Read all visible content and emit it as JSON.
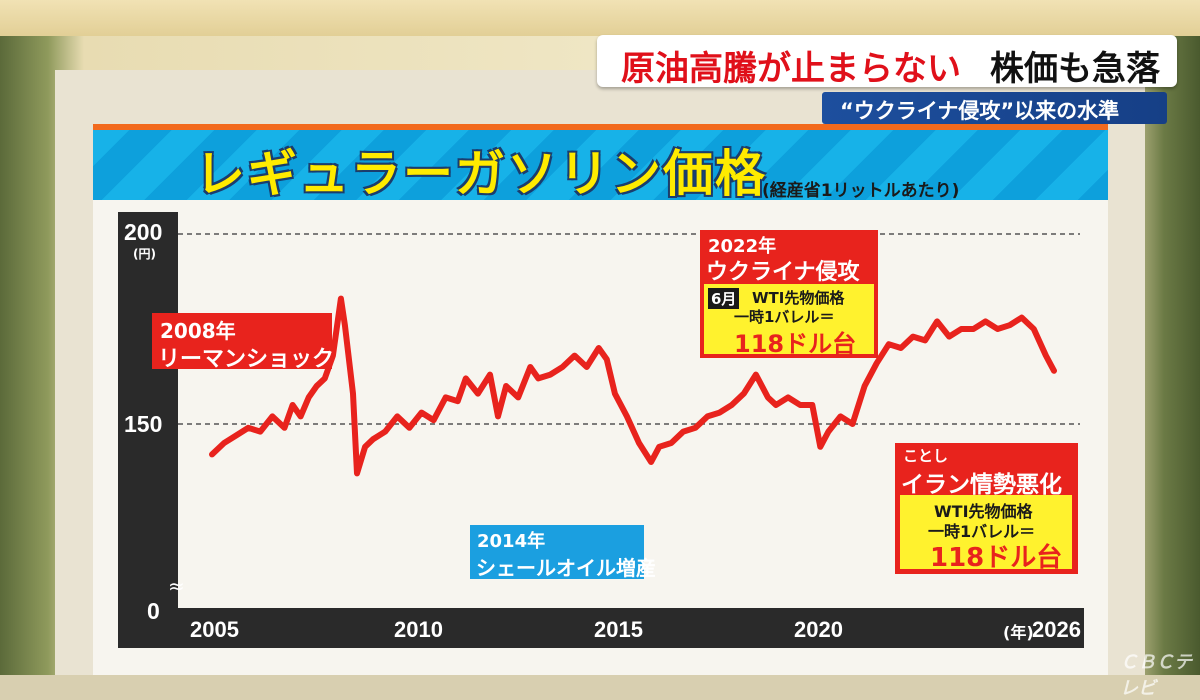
{
  "headline": {
    "part1": "原油高騰が止まらない",
    "part2": "株価も急落"
  },
  "subheadline": "“ウクライナ侵攻”以来の水準",
  "watermark": "ＣＢＣテレビ",
  "colors": {
    "line": "#e8231d",
    "title": "#ffeb00",
    "band": "#17b2e8",
    "axis": "#2a2a2a",
    "callout_yellow": "#fff22e"
  },
  "chart_data": {
    "type": "line",
    "title": "レギュラーガソリン価格",
    "subtitle": "(経産省1リットルあたり)",
    "ylabel_unit": "(円)",
    "xlabel_unit": "(年)",
    "y_ticks": [
      "200",
      "150",
      "0"
    ],
    "x_ticks": [
      "2005",
      "2010",
      "2015",
      "2020",
      "2026"
    ],
    "ylim": [
      130,
      200
    ],
    "axis_break": true,
    "grid": "dashed",
    "series": [
      {
        "x": [
          2005.0,
          2005.3,
          2005.6,
          2005.9,
          2006.2,
          2006.5,
          2006.8,
          2007.0,
          2007.2,
          2007.4,
          2007.6,
          2007.8,
          2008.0,
          2008.2,
          2008.3,
          2008.5,
          2008.6,
          2008.8,
          2009.0,
          2009.3,
          2009.6,
          2009.9,
          2010.2,
          2010.5,
          2010.8,
          2011.1,
          2011.3,
          2011.6,
          2011.9,
          2012.1,
          2012.3,
          2012.6,
          2012.9,
          2013.1,
          2013.4,
          2013.7,
          2014.0,
          2014.3,
          2014.6,
          2014.8,
          2015.0,
          2015.3,
          2015.6,
          2015.9,
          2016.1,
          2016.4,
          2016.7,
          2017.0,
          2017.3,
          2017.6,
          2017.9,
          2018.2,
          2018.5,
          2018.8,
          2019.0,
          2019.3,
          2019.6,
          2019.9,
          2020.1,
          2020.3,
          2020.6,
          2020.9,
          2021.2,
          2021.5,
          2021.8,
          2022.1,
          2022.4,
          2022.7,
          2023.0,
          2023.3,
          2023.6,
          2023.9,
          2024.2,
          2024.5,
          2024.8,
          2025.1,
          2025.4,
          2025.7,
          2025.9
        ],
        "values": [
          142,
          145,
          147,
          149,
          148,
          152,
          149,
          155,
          152,
          157,
          160,
          162,
          168,
          183,
          176,
          158,
          137,
          144,
          146,
          148,
          152,
          149,
          153,
          151,
          157,
          156,
          162,
          158,
          163,
          152,
          160,
          157,
          165,
          162,
          163,
          165,
          168,
          165,
          170,
          167,
          158,
          152,
          145,
          140,
          144,
          145,
          148,
          149,
          152,
          153,
          155,
          158,
          163,
          157,
          155,
          157,
          155,
          155,
          144,
          148,
          152,
          150,
          160,
          166,
          171,
          170,
          173,
          172,
          177,
          173,
          175,
          175,
          177,
          175,
          176,
          178,
          175,
          168,
          164
        ]
      }
    ]
  },
  "annotations": {
    "lehman": {
      "year": "2008年",
      "event": "リーマンショック"
    },
    "shale": {
      "year": "2014年",
      "event": "シェールオイル増産"
    },
    "ukraine": {
      "year": "2022年",
      "event": "ウクライナ侵攻",
      "month": "6月",
      "line1": "WTI先物価格",
      "line2": "一時1バレル＝",
      "price": "118ドル台"
    },
    "iran": {
      "year": "ことし",
      "event": "イラン情勢悪化",
      "line1": "WTI先物価格",
      "line2": "一時1バレル＝",
      "price": "118ドル台"
    }
  }
}
